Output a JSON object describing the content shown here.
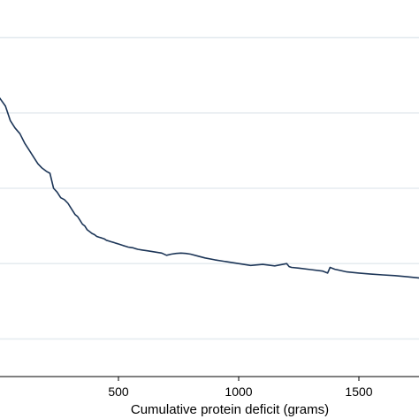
{
  "chart_data": {
    "type": "line",
    "title": "",
    "xlabel": "Cumulative protein deficit (grams)",
    "ylabel": "",
    "xlim": [
      0,
      1750
    ],
    "ylim": [
      0,
      1
    ],
    "xticks": [
      500,
      1000,
      1500
    ],
    "xtick_labels": [
      "500",
      "1000",
      "1500"
    ],
    "gridlines_y": [
      0.1,
      0.3,
      0.5,
      0.7,
      0.9
    ],
    "grid": true,
    "legend": "none",
    "series": [
      {
        "color": "#1c3557",
        "x": [
          0,
          30,
          50,
          70,
          90,
          110,
          130,
          150,
          165,
          180,
          200,
          215,
          230,
          245,
          260,
          275,
          290,
          300,
          310,
          320,
          330,
          340,
          350,
          360,
          370,
          380,
          390,
          400,
          410,
          420,
          430,
          440,
          450,
          460,
          470,
          480,
          490,
          500,
          510,
          520,
          530,
          540,
          550,
          560,
          570,
          580,
          600,
          620,
          640,
          660,
          680,
          700,
          720,
          740,
          760,
          780,
          800,
          830,
          860,
          900,
          950,
          1000,
          1050,
          1100,
          1150,
          1200,
          1210,
          1220,
          1250,
          1300,
          1350,
          1370,
          1380,
          1400,
          1450,
          1500,
          1550,
          1600,
          1650,
          1700,
          1750
        ],
        "y": [
          0.745,
          0.718,
          0.68,
          0.66,
          0.645,
          0.62,
          0.6,
          0.58,
          0.565,
          0.555,
          0.545,
          0.54,
          0.5,
          0.49,
          0.475,
          0.47,
          0.46,
          0.45,
          0.44,
          0.43,
          0.425,
          0.415,
          0.405,
          0.4,
          0.39,
          0.385,
          0.38,
          0.377,
          0.372,
          0.37,
          0.368,
          0.366,
          0.362,
          0.36,
          0.358,
          0.356,
          0.354,
          0.352,
          0.35,
          0.348,
          0.346,
          0.344,
          0.343,
          0.342,
          0.34,
          0.338,
          0.336,
          0.334,
          0.332,
          0.33,
          0.328,
          0.322,
          0.325,
          0.327,
          0.328,
          0.327,
          0.325,
          0.32,
          0.315,
          0.31,
          0.305,
          0.3,
          0.295,
          0.298,
          0.294,
          0.3,
          0.292,
          0.29,
          0.288,
          0.284,
          0.28,
          0.275,
          0.29,
          0.285,
          0.278,
          0.275,
          0.272,
          0.27,
          0.268,
          0.265,
          0.262
        ]
      }
    ]
  }
}
